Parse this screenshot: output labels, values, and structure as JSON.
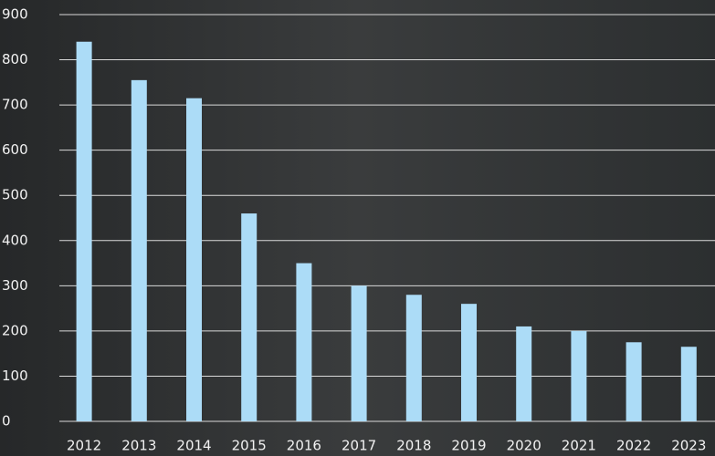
{
  "chart_data": {
    "type": "bar",
    "categories": [
      "2012",
      "2013",
      "2014",
      "2015",
      "2016",
      "2017",
      "2018",
      "2019",
      "2020",
      "2021",
      "2022",
      "2023"
    ],
    "values": [
      840,
      755,
      715,
      460,
      350,
      300,
      280,
      260,
      210,
      200,
      175,
      165
    ],
    "color": "#acdcf7",
    "ylim": [
      0,
      900
    ],
    "yticks": [
      0,
      100,
      200,
      300,
      400,
      500,
      600,
      700,
      800,
      900
    ],
    "grid": true
  }
}
